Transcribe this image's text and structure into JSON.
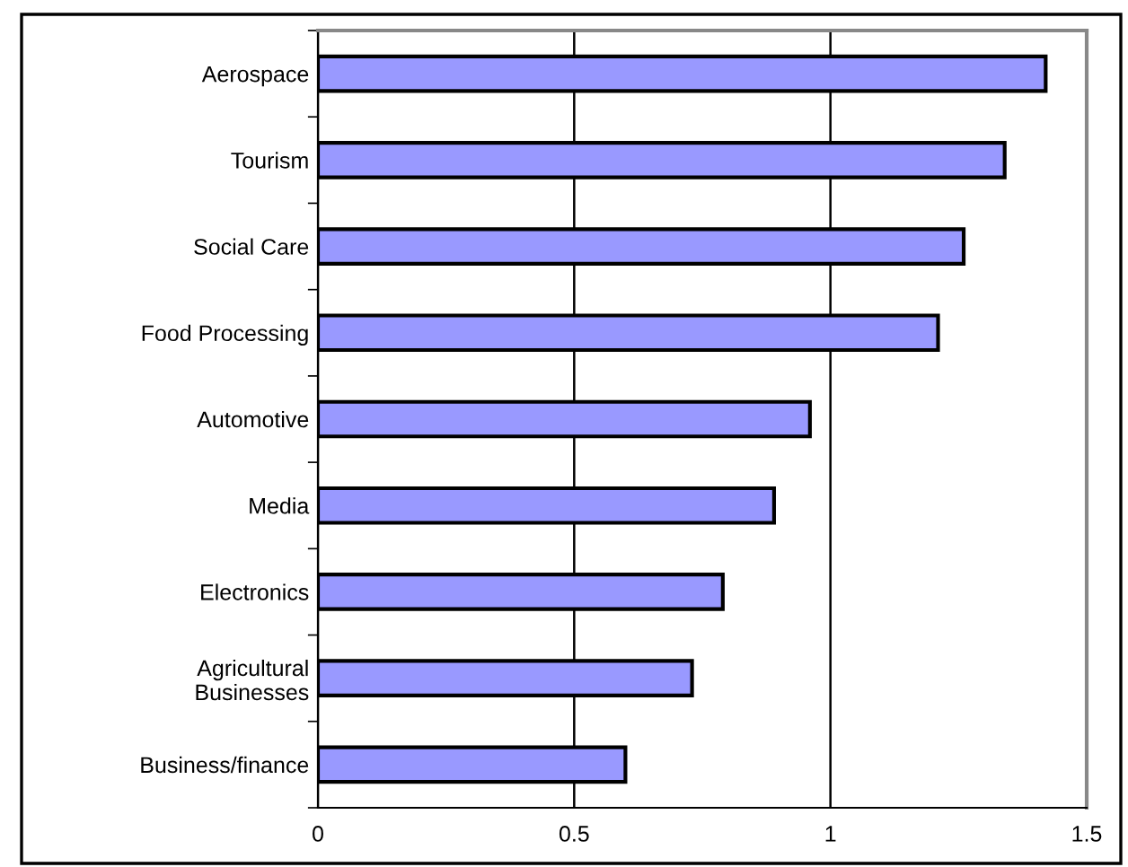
{
  "chart_data": {
    "type": "bar",
    "orientation": "horizontal",
    "categories": [
      "Aerospace",
      "Tourism",
      "Social Care",
      "Food Processing",
      "Automotive",
      "Media",
      "Electronics",
      "Agricultural\nBusinesses",
      "Business/finance"
    ],
    "values": [
      1.42,
      1.34,
      1.26,
      1.21,
      0.96,
      0.89,
      0.79,
      0.73,
      0.6
    ],
    "color": "#9999ff",
    "xlim": [
      0,
      1.5
    ],
    "xticks": [
      0,
      0.5,
      1,
      1.5
    ],
    "grid": "x",
    "legend": false
  }
}
